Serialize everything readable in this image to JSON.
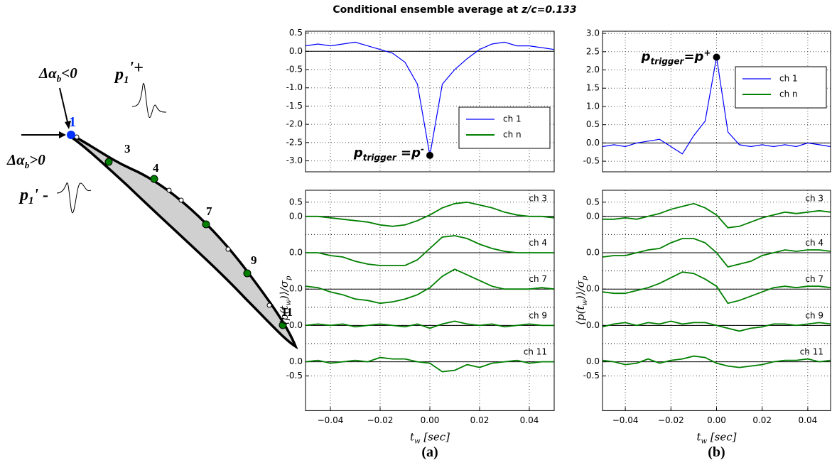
{
  "title": {
    "text": "Conditional ensemble average at",
    "emphasis": "z/c=0.133"
  },
  "diagram": {
    "points": [
      "1",
      "3",
      "4",
      "7",
      "9",
      "11"
    ],
    "angle_neg": {
      "base": "Δα",
      "sub": "b",
      "rest": "<0"
    },
    "angle_pos": {
      "base": "Δα",
      "sub": "b",
      "rest": ">0"
    },
    "pulse_pos": {
      "base": "p",
      "sub": "1",
      "rest": "'+"
    },
    "pulse_neg": {
      "base": "p",
      "sub": "1",
      "rest": "' -"
    }
  },
  "chart_data": [
    {
      "type": "line",
      "label": "(a)",
      "xlabel": [
        "t",
        "w",
        " [sec]"
      ],
      "ylabel": [
        "⟨p(t",
        "w",
        ")⟩/σ",
        "p"
      ],
      "xlim": [
        -0.05,
        0.05
      ],
      "xticks": [
        {
          "value": -0.04,
          "label": "−0.04"
        },
        {
          "value": -0.02,
          "label": "−0.02"
        },
        {
          "value": 0,
          "label": "0.00"
        },
        0.02,
        0.04
      ],
      "x": [
        -0.05,
        -0.045,
        -0.04,
        -0.035,
        -0.03,
        -0.025,
        -0.02,
        -0.015,
        -0.01,
        -0.005,
        0,
        0.005,
        0.01,
        0.015,
        0.02,
        0.025,
        0.03,
        0.035,
        0.04,
        0.045,
        0.05
      ],
      "grid": true,
      "panels": [
        {
          "ylim": [
            -3.3,
            0.55
          ],
          "yticks": [
            0.5,
            {
              "value": 0,
              "label": "0.0"
            },
            -0.5,
            {
              "value": -1,
              "label": "-1.0"
            },
            -1.5,
            {
              "value": -2,
              "label": "-2.0"
            },
            -2.5,
            {
              "value": -3,
              "label": "-3.0"
            }
          ],
          "zeroline": true,
          "series": [
            {
              "name": "ch 1",
              "color": "#0000ff",
              "values": [
                0.15,
                0.2,
                0.15,
                0.2,
                0.25,
                0.15,
                0.05,
                -0.05,
                -0.3,
                -0.9,
                -2.85,
                -0.9,
                -0.5,
                -0.2,
                0.05,
                0.2,
                0.25,
                0.15,
                0.15,
                0.1,
                0.05
              ]
            }
          ],
          "legend": {
            "corner": "center right",
            "extra": [
              {
                "name": "ch n",
                "color": "#007f00"
              }
            ]
          },
          "marker": {
            "x": 0,
            "y": -2.85,
            "annotation": {
              "base": "p",
              "sub": "trigger",
              "rest": " =p",
              "sup": "-"
            }
          }
        },
        {
          "ylim": [
            -0.64,
            0.92
          ],
          "yticks": [
            0.5,
            {
              "value": 0,
              "label": "0.0"
            }
          ],
          "zeroline": true,
          "series": [
            {
              "name": "ch 3",
              "color": "#007f00",
              "values": [
                0,
                0,
                -0.05,
                -0.1,
                -0.15,
                -0.2,
                -0.3,
                -0.35,
                -0.3,
                -0.15,
                0.05,
                0.3,
                0.45,
                0.5,
                0.4,
                0.3,
                0.15,
                0.05,
                0,
                0,
                -0.05
              ]
            }
          ]
        },
        {
          "ylim": [
            -0.64,
            0.64
          ],
          "yticks": [
            {
              "value": 0,
              "label": "0.0"
            }
          ],
          "zeroline": true,
          "series": [
            {
              "name": "ch 4",
              "color": "#007f00",
              "values": [
                0,
                0,
                -0.1,
                -0.15,
                -0.3,
                -0.4,
                -0.45,
                -0.45,
                -0.45,
                -0.25,
                0.15,
                0.55,
                0.6,
                0.5,
                0.3,
                0.15,
                0.05,
                0,
                0,
                0,
                0
              ]
            }
          ]
        },
        {
          "ylim": [
            -0.64,
            0.64
          ],
          "yticks": [
            {
              "value": 0,
              "label": "0.0"
            }
          ],
          "zeroline": true,
          "series": [
            {
              "name": "ch 7",
              "color": "#007f00",
              "values": [
                0.1,
                0.05,
                -0.1,
                -0.2,
                -0.35,
                -0.4,
                -0.5,
                -0.45,
                -0.35,
                -0.2,
                0.05,
                0.45,
                0.7,
                0.5,
                0.3,
                0.1,
                0,
                0,
                0,
                0.05,
                0
              ]
            }
          ]
        },
        {
          "ylim": [
            -0.64,
            0.64
          ],
          "yticks": [
            {
              "value": 0,
              "label": "0.0"
            }
          ],
          "zeroline": true,
          "series": [
            {
              "name": "ch 9",
              "color": "#007f00",
              "values": [
                0,
                0.05,
                0,
                0.05,
                -0.05,
                0,
                0.05,
                0,
                -0.05,
                0.05,
                -0.1,
                0.05,
                0.15,
                0.05,
                0,
                0.05,
                -0.05,
                0,
                0.05,
                0,
                0
              ]
            }
          ]
        },
        {
          "ylim": [
            -1.72,
            0.64
          ],
          "yticks": [
            {
              "value": 0,
              "label": "0.0"
            },
            -0.5
          ],
          "zeroline": true,
          "series": [
            {
              "name": "ch 11",
              "color": "#007f00",
              "values": [
                0,
                0.05,
                -0.05,
                0,
                0.05,
                0,
                0.15,
                0.1,
                0.1,
                0,
                -0.05,
                -0.35,
                -0.3,
                -0.1,
                -0.2,
                -0.05,
                0,
                0.05,
                -0.05,
                0,
                0
              ]
            }
          ]
        }
      ]
    },
    {
      "type": "line",
      "label": "(b)",
      "xlabel": [
        "t",
        "w",
        " [sec]"
      ],
      "ylabel": [
        "⟨p(t",
        "w",
        ")⟩/σ",
        "p"
      ],
      "xlim": [
        -0.05,
        0.05
      ],
      "xticks": [
        {
          "value": -0.04,
          "label": "−0.04"
        },
        {
          "value": -0.02,
          "label": "−0.02"
        },
        {
          "value": 0,
          "label": "0.00"
        },
        0.02,
        0.04
      ],
      "x": [
        -0.05,
        -0.045,
        -0.04,
        -0.035,
        -0.03,
        -0.025,
        -0.02,
        -0.015,
        -0.01,
        -0.005,
        0,
        0.005,
        0.01,
        0.015,
        0.02,
        0.025,
        0.03,
        0.035,
        0.04,
        0.045,
        0.05
      ],
      "grid": true,
      "panels": [
        {
          "ylim": [
            -0.79,
            3.06
          ],
          "yticks": [
            {
              "value": 3,
              "label": "3.0"
            },
            2.5,
            {
              "value": 2,
              "label": "2.0"
            },
            1.5,
            {
              "value": 1,
              "label": "1.0"
            },
            0.5,
            {
              "value": 0,
              "label": "0.0"
            },
            -0.5
          ],
          "zeroline": true,
          "series": [
            {
              "name": "ch 1",
              "color": "#0000ff",
              "values": [
                -0.1,
                -0.05,
                -0.1,
                0,
                0.05,
                0.1,
                -0.1,
                -0.3,
                0.2,
                0.6,
                2.35,
                0.3,
                -0.05,
                -0.1,
                -0.05,
                -0.1,
                -0.05,
                -0.1,
                0,
                -0.05,
                -0.1
              ]
            }
          ],
          "legend": {
            "corner": "upper right",
            "extra": [
              {
                "name": "ch n",
                "color": "#007f00"
              }
            ]
          },
          "marker": {
            "x": 0,
            "y": 2.35,
            "annotation": {
              "base": "p",
              "sub": "trigger",
              "rest": "=p",
              "sup": "+"
            }
          }
        },
        {
          "ylim": [
            -0.64,
            0.92
          ],
          "yticks": [
            0.5,
            {
              "value": 0,
              "label": "0.0"
            }
          ],
          "zeroline": true,
          "series": [
            {
              "name": "ch 3",
              "color": "#007f00",
              "values": [
                -0.1,
                -0.1,
                -0.05,
                -0.1,
                0,
                0.1,
                0.25,
                0.35,
                0.45,
                0.3,
                0.05,
                -0.4,
                -0.35,
                -0.2,
                -0.05,
                0.05,
                0.15,
                0.1,
                0.15,
                0.2,
                0.15
              ]
            }
          ]
        },
        {
          "ylim": [
            -0.64,
            0.64
          ],
          "yticks": [
            {
              "value": 0,
              "label": "0.0"
            }
          ],
          "zeroline": true,
          "series": [
            {
              "name": "ch 4",
              "color": "#007f00",
              "values": [
                -0.15,
                -0.1,
                -0.1,
                0,
                0.1,
                0.15,
                0.35,
                0.5,
                0.5,
                0.35,
                0,
                -0.5,
                -0.4,
                -0.3,
                -0.1,
                0,
                0.1,
                0.05,
                0.1,
                0.1,
                0.05
              ]
            }
          ]
        },
        {
          "ylim": [
            -0.64,
            0.64
          ],
          "yticks": [
            {
              "value": 0,
              "label": "0.0"
            }
          ],
          "zeroline": true,
          "series": [
            {
              "name": "ch 7",
              "color": "#007f00",
              "values": [
                -0.1,
                -0.15,
                -0.15,
                -0.05,
                0.05,
                0.2,
                0.4,
                0.6,
                0.55,
                0.35,
                0.1,
                -0.5,
                -0.4,
                -0.25,
                -0.1,
                0.05,
                0.1,
                0.05,
                0.1,
                0.1,
                0.05
              ]
            }
          ]
        },
        {
          "ylim": [
            -0.64,
            0.64
          ],
          "yticks": [
            {
              "value": 0,
              "label": "0.0"
            }
          ],
          "zeroline": true,
          "series": [
            {
              "name": "ch 9",
              "color": "#007f00",
              "values": [
                -0.05,
                0.05,
                0.1,
                0,
                0.1,
                0.05,
                0.15,
                0.05,
                0.1,
                0.1,
                0,
                -0.1,
                -0.2,
                -0.1,
                -0.05,
                0.05,
                0.05,
                0,
                0.05,
                0.1,
                0.05
              ]
            }
          ]
        },
        {
          "ylim": [
            -1.72,
            0.64
          ],
          "yticks": [
            {
              "value": 0,
              "label": "0.0"
            },
            -0.5
          ],
          "zeroline": true,
          "series": [
            {
              "name": "ch 11",
              "color": "#007f00",
              "values": [
                0.05,
                0,
                -0.1,
                -0.05,
                0.1,
                -0.05,
                0.05,
                0.1,
                0.2,
                0.15,
                -0.05,
                -0.15,
                -0.2,
                -0.15,
                -0.1,
                0,
                0.05,
                0.05,
                0.1,
                0,
                0.05
              ]
            }
          ]
        }
      ]
    }
  ]
}
